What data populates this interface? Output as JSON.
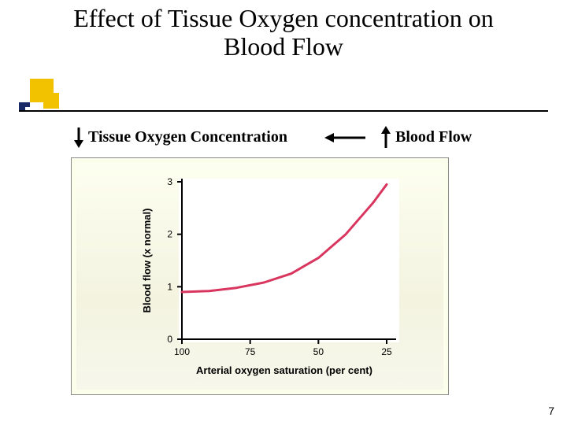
{
  "title_line1": "Effect of Tissue Oxygen concentration on",
  "title_line2": "Blood Flow",
  "title_fontsize": 32,
  "relationship": {
    "left_label": "Tissue Oxygen Concentration",
    "right_label": "Blood Flow",
    "fontsize": 20,
    "arrow_color": "#000000",
    "left_arrow_dir": "down",
    "right_arrow_dir": "up"
  },
  "chart": {
    "type": "line",
    "background_color": "#ffffff",
    "gradient_bg_top": "#fdfff0",
    "gradient_bg_bottom": "#f3f3e0",
    "xlabel": "Arterial oxygen saturation (per cent)",
    "ylabel": "Blood flow (x normal)",
    "label_fontsize": 13,
    "label_font": "Arial",
    "label_weight": "bold",
    "label_color": "#000000",
    "axis_color": "#000000",
    "axis_width": 2,
    "tick_length": 6,
    "tick_fontsize": 12,
    "xlim": [
      100,
      25
    ],
    "ylim": [
      0,
      3
    ],
    "xticks": [
      100,
      75,
      50,
      25
    ],
    "yticks": [
      0,
      1,
      2,
      3
    ],
    "line_color": "#d9365f",
    "line_width": 3,
    "curve_points_x": [
      100,
      90,
      80,
      70,
      60,
      50,
      40,
      30,
      25
    ],
    "curve_points_y": [
      0.9,
      0.92,
      0.98,
      1.08,
      1.25,
      1.55,
      2.0,
      2.6,
      2.95
    ]
  },
  "page_number": "7",
  "page_number_fontsize": 14,
  "decor": {
    "yellow": "#f2c100",
    "navy": "#1a2a66",
    "rule": "#000000"
  }
}
